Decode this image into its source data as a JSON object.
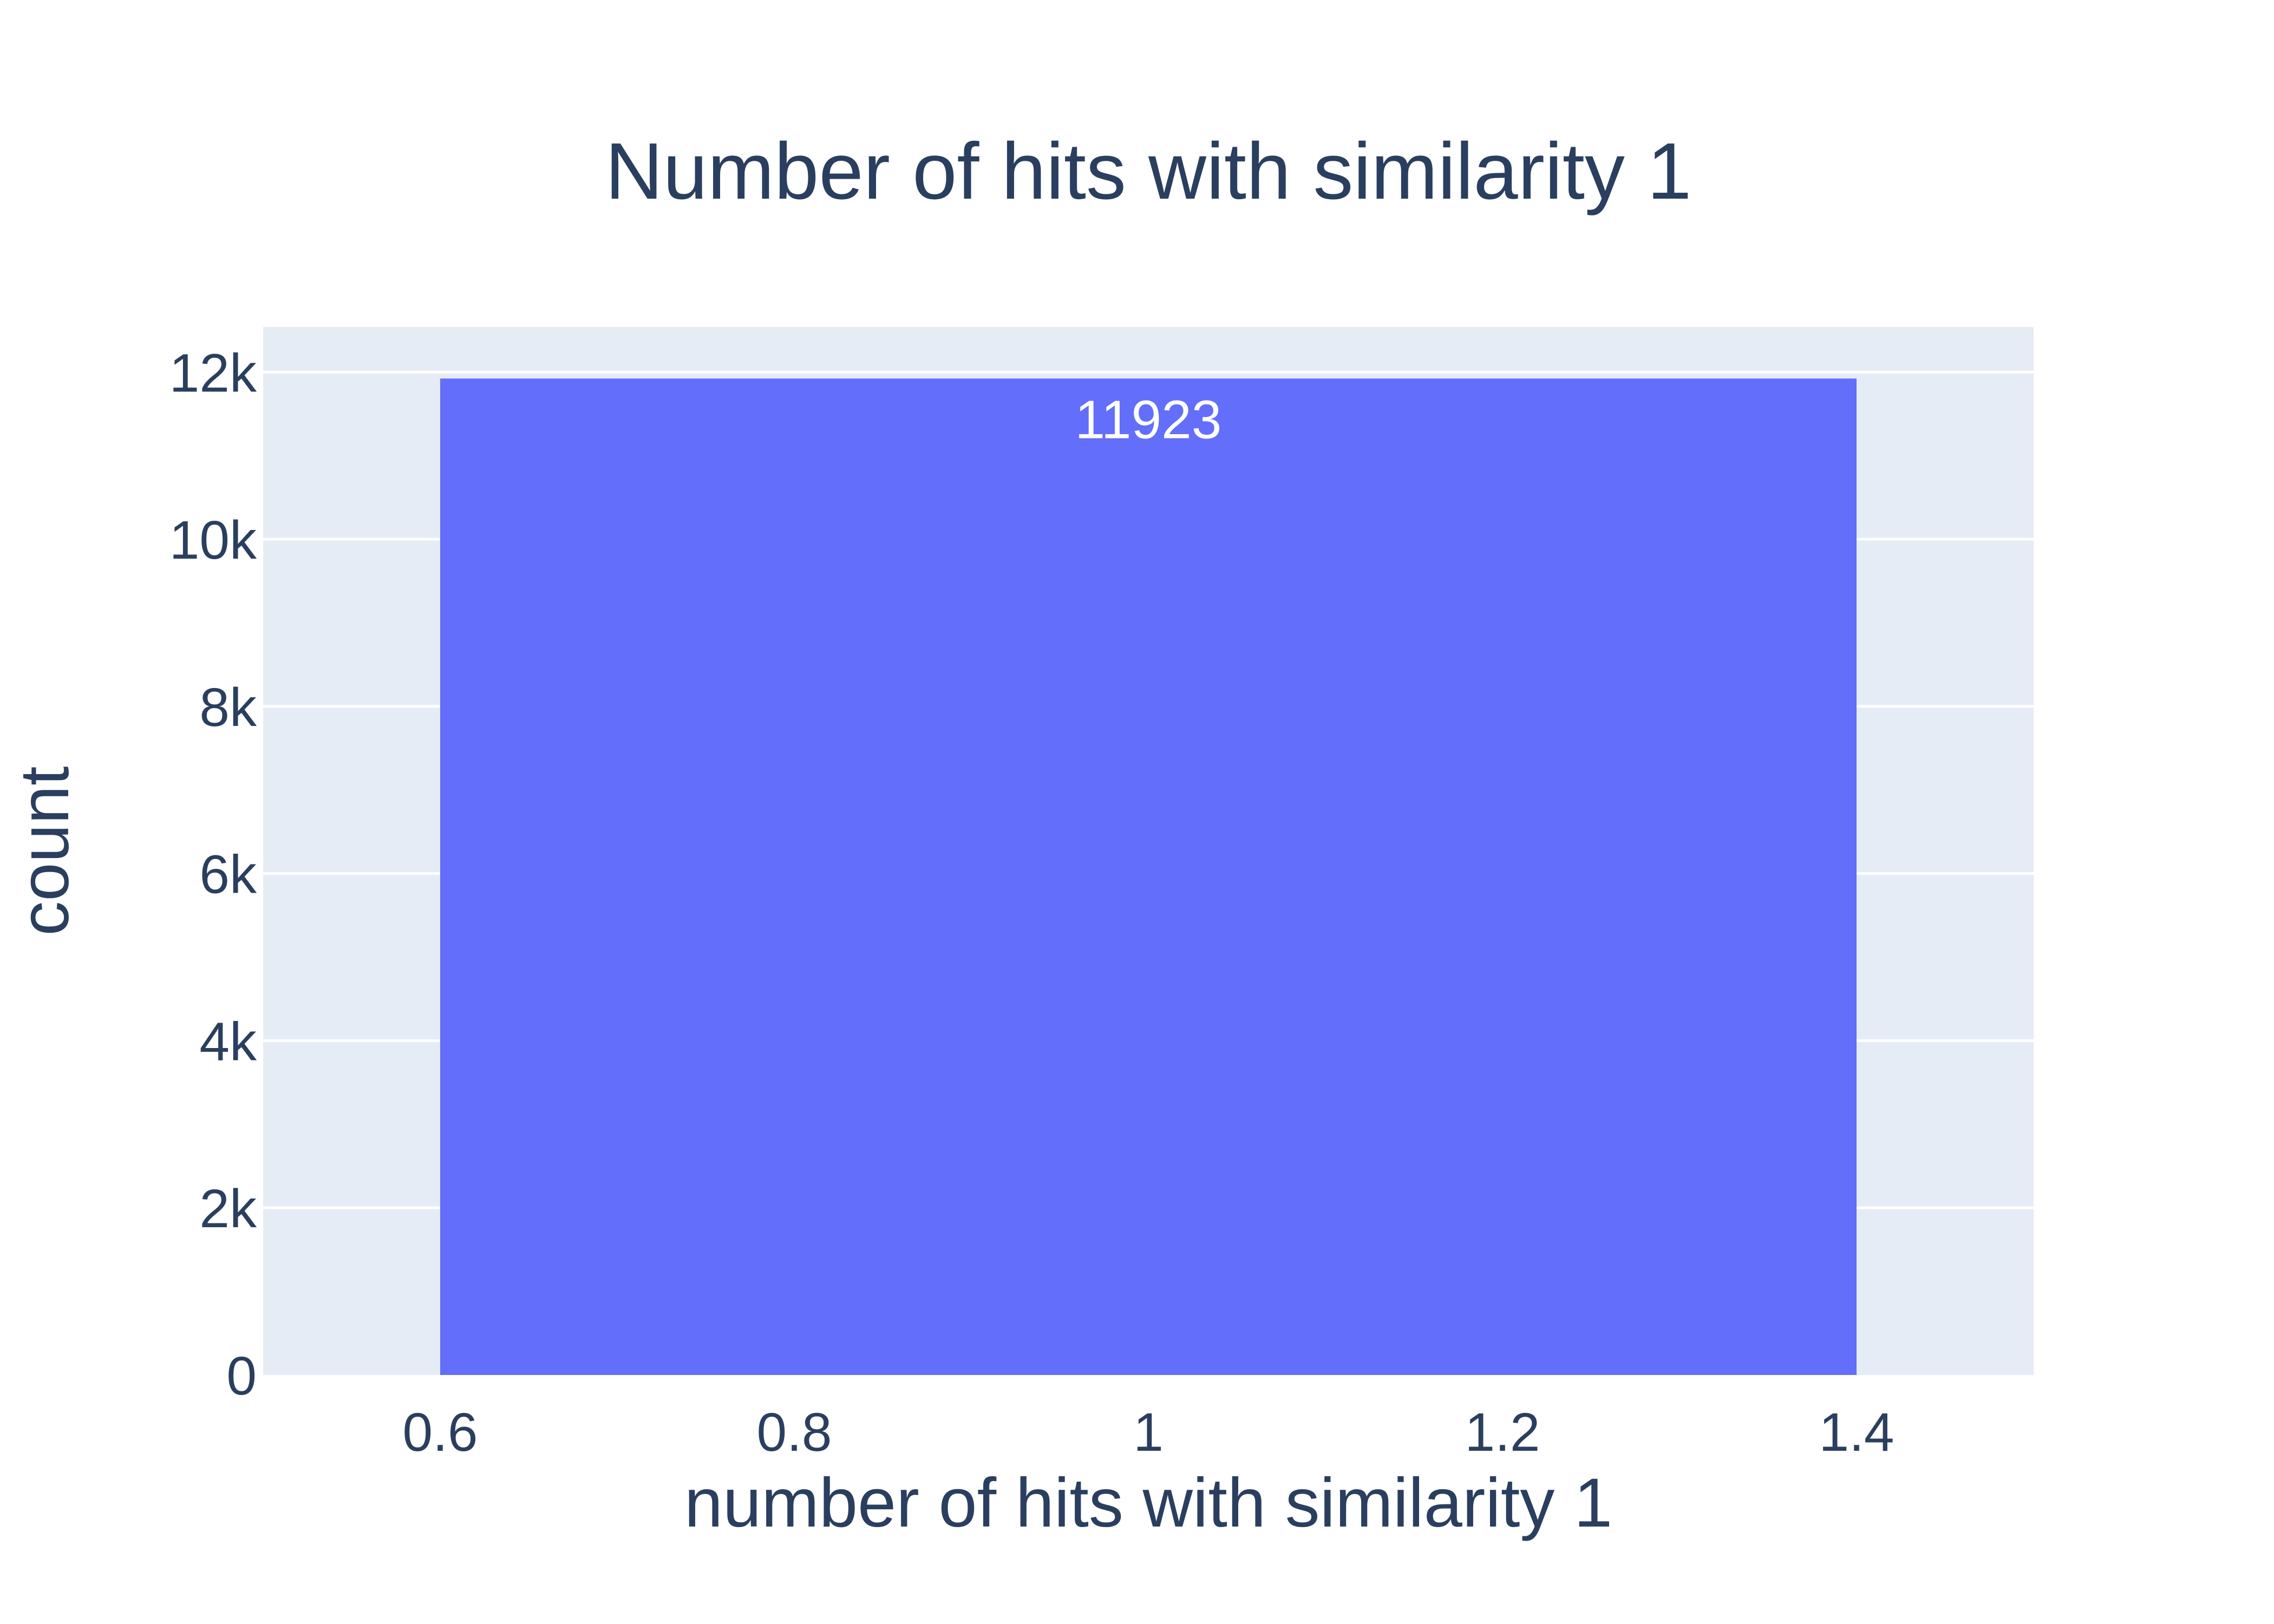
{
  "chart_data": {
    "type": "bar",
    "title": "Number of hits with similarity 1",
    "xlabel": "number of hits with similarity 1",
    "ylabel": "count",
    "bars": [
      {
        "x_start": 0.6,
        "x_end": 1.4,
        "value": 11923,
        "label": "11923"
      }
    ],
    "xlim": [
      0.5,
      1.5
    ],
    "ylim": [
      0,
      12540
    ],
    "x_ticks": [
      0.6,
      0.8,
      1,
      1.2,
      1.4
    ],
    "x_tick_labels": [
      "0.6",
      "0.8",
      "1",
      "1.2",
      "1.4"
    ],
    "y_ticks": [
      0,
      2000,
      4000,
      6000,
      8000,
      10000,
      12000
    ],
    "y_tick_labels": [
      "0",
      "2k",
      "4k",
      "6k",
      "8k",
      "10k",
      "12k"
    ],
    "grid": true,
    "colors": {
      "bar": "#636efa",
      "plot_background": "#e5ecf6",
      "grid": "#ffffff",
      "text": "#2a3f5f",
      "bar_label": "#ffffff"
    }
  }
}
